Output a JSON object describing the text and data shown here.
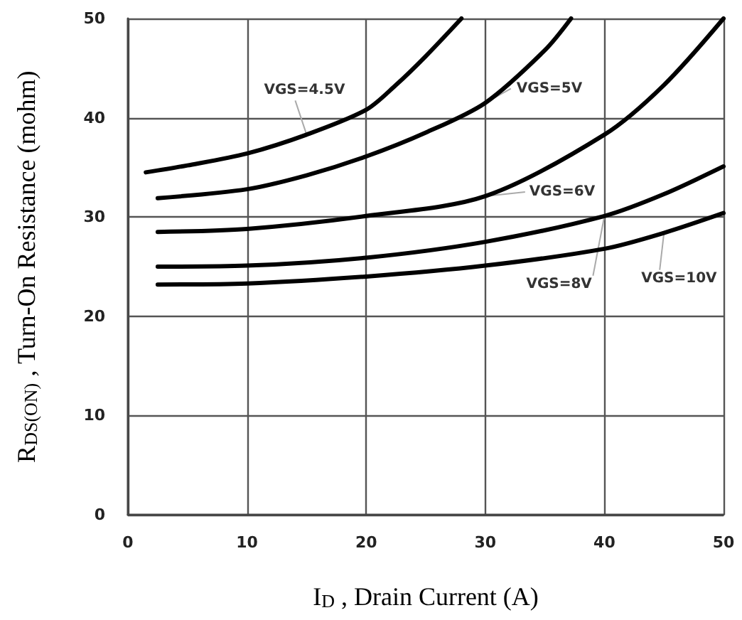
{
  "chart_data": {
    "type": "line",
    "xlabel": "I$_{D}$ , Drain Current (A)",
    "ylabel": "R$_{DS(ON)}$ , Turn-On Resistance (mohm)",
    "xlim": [
      0,
      50
    ],
    "xticks": [
      0,
      10,
      20,
      30,
      40,
      50
    ],
    "ylim": [
      0,
      50
    ],
    "yticks": [
      0,
      10,
      20,
      30,
      40,
      50
    ],
    "grid": true,
    "legend": false,
    "marker": "none",
    "line_style": "solid",
    "series": [
      {
        "name": "VGS=4.5V",
        "color": "#000000",
        "x": [
          1.5,
          5,
          10,
          15,
          20,
          22.5,
          25,
          28
        ],
        "values": [
          34.5,
          35.2,
          36.4,
          38.3,
          40.8,
          43.3,
          46.2,
          50
        ]
      },
      {
        "name": "VGS=5V",
        "color": "#000000",
        "x": [
          2.5,
          10,
          15,
          20,
          25,
          30,
          35,
          37.2
        ],
        "values": [
          31.9,
          32.8,
          34.2,
          36.1,
          38.5,
          41.5,
          46.8,
          50
        ]
      },
      {
        "name": "VGS=6V",
        "color": "#000000",
        "x": [
          2.5,
          10,
          20,
          30,
          40,
          45,
          50
        ],
        "values": [
          28.5,
          28.8,
          30.1,
          32.1,
          38.3,
          43.3,
          50
        ]
      },
      {
        "name": "VGS=8V",
        "color": "#000000",
        "x": [
          2.5,
          10,
          20,
          30,
          40,
          45,
          50
        ],
        "values": [
          25,
          25.1,
          25.9,
          27.5,
          30.1,
          32.3,
          35.1
        ]
      },
      {
        "name": "VGS=10V",
        "color": "#000000",
        "x": [
          2.5,
          10,
          20,
          30,
          40,
          45,
          50
        ],
        "values": [
          23.2,
          23.3,
          24,
          25.1,
          26.8,
          28.4,
          30.4
        ]
      }
    ]
  }
}
